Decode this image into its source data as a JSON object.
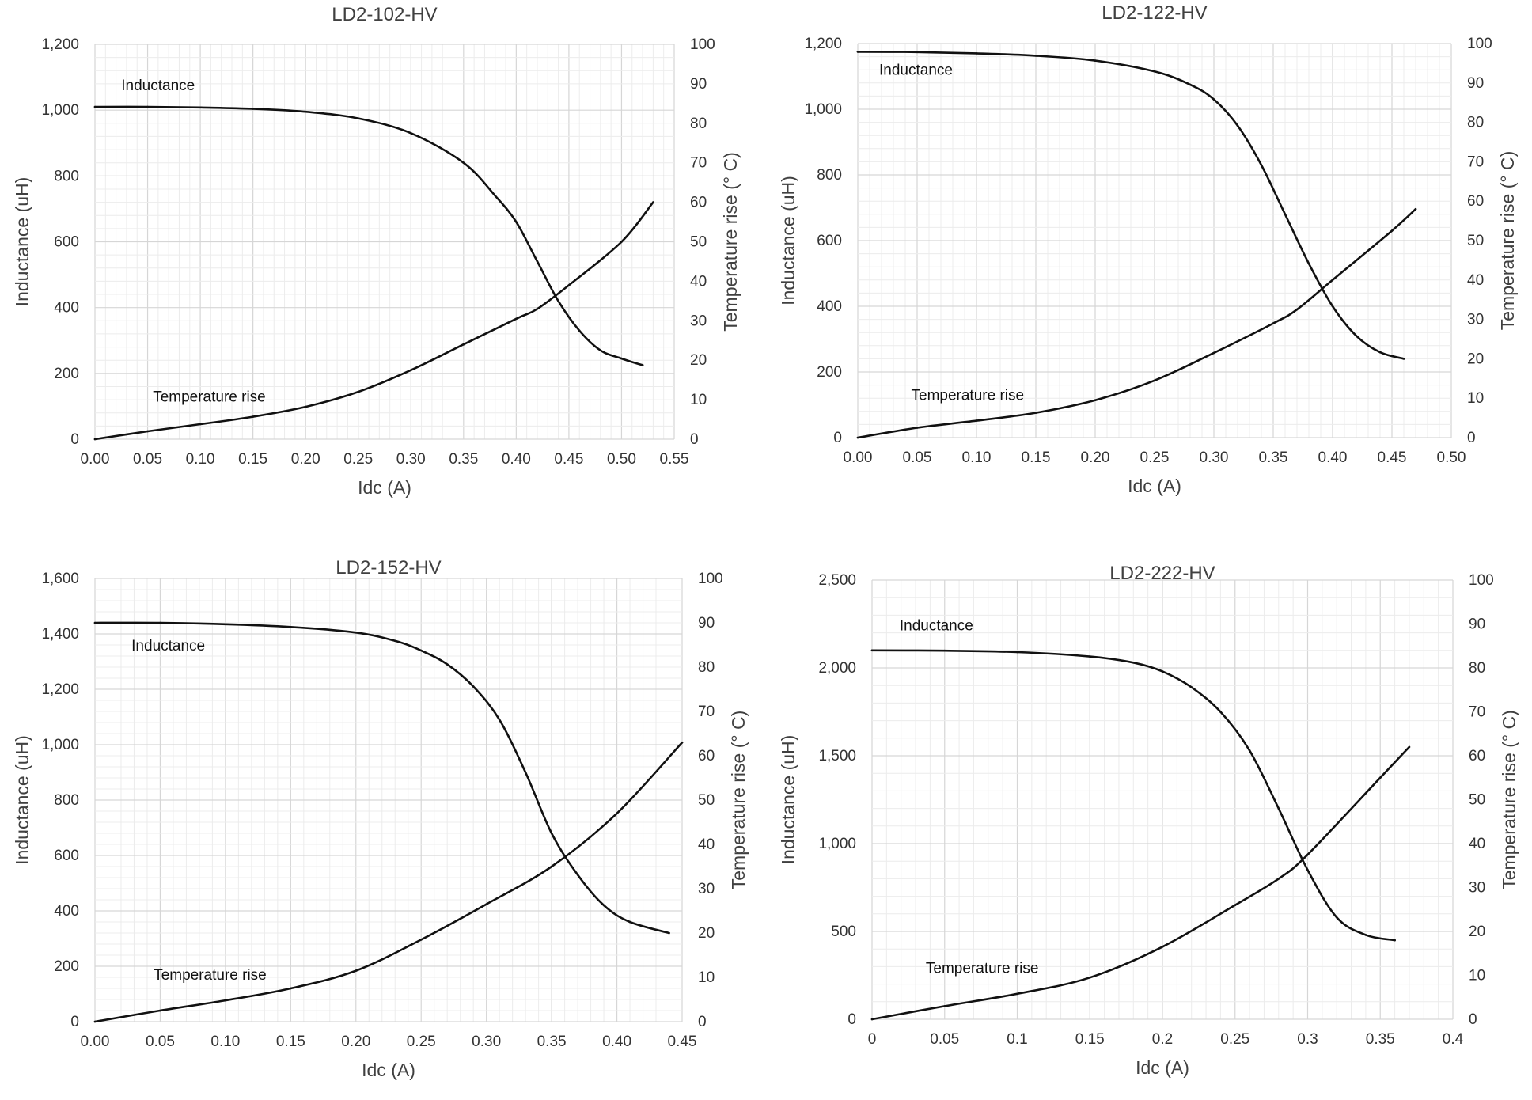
{
  "chart_data": [
    {
      "type": "line",
      "title": "LD2-102-HV",
      "xlabel": "Idc (A)",
      "ylabel": "Inductance (uH)",
      "y2label": "Temperature rise (° C)",
      "xlim": [
        0,
        0.55
      ],
      "ylim": [
        0,
        1200
      ],
      "y2lim": [
        0,
        100
      ],
      "x_ticks": [
        "0.00",
        "0.05",
        "0.10",
        "0.15",
        "0.20",
        "0.25",
        "0.30",
        "0.35",
        "0.40",
        "0.45",
        "0.50",
        "0.55"
      ],
      "y_ticks": [
        "0",
        "200",
        "400",
        "600",
        "800",
        "1,000",
        "1,200"
      ],
      "y2_ticks": [
        "0",
        "10",
        "20",
        "30",
        "40",
        "50",
        "60",
        "70",
        "80",
        "90",
        "100"
      ],
      "series": [
        {
          "name": "Inductance",
          "axis": "left",
          "label_at": [
            0.025,
            1060
          ],
          "x": [
            0,
            0.05,
            0.1,
            0.15,
            0.2,
            0.25,
            0.3,
            0.35,
            0.38,
            0.4,
            0.42,
            0.44,
            0.46,
            0.48,
            0.5,
            0.52
          ],
          "y": [
            1010,
            1010,
            1008,
            1004,
            995,
            975,
            930,
            840,
            740,
            660,
            540,
            420,
            330,
            270,
            245,
            225
          ]
        },
        {
          "name": "Temperature rise",
          "axis": "right",
          "label_at": [
            0.055,
            9.5
          ],
          "x": [
            0,
            0.05,
            0.1,
            0.15,
            0.2,
            0.25,
            0.3,
            0.35,
            0.4,
            0.42,
            0.45,
            0.5,
            0.53
          ],
          "y": [
            0,
            2,
            3.8,
            5.7,
            8.2,
            12,
            17.5,
            24,
            30.5,
            33,
            39,
            50,
            60
          ]
        }
      ]
    },
    {
      "type": "line",
      "title": "LD2-122-HV",
      "xlabel": "Idc (A)",
      "ylabel": "Inductance (uH)",
      "y2label": "Temperature rise (° C)",
      "xlim": [
        0,
        0.5
      ],
      "ylim": [
        0,
        1200
      ],
      "y2lim": [
        0,
        100
      ],
      "x_ticks": [
        "0.00",
        "0.05",
        "0.10",
        "0.15",
        "0.20",
        "0.25",
        "0.30",
        "0.35",
        "0.40",
        "0.45",
        "0.50"
      ],
      "y_ticks": [
        "0",
        "200",
        "400",
        "600",
        "800",
        "1,000",
        "1,200"
      ],
      "y2_ticks": [
        "0",
        "10",
        "20",
        "30",
        "40",
        "50",
        "60",
        "70",
        "80",
        "90",
        "100"
      ],
      "series": [
        {
          "name": "Inductance",
          "axis": "left",
          "label_at": [
            0.018,
            1105
          ],
          "x": [
            0,
            0.05,
            0.1,
            0.15,
            0.2,
            0.25,
            0.28,
            0.3,
            0.32,
            0.34,
            0.36,
            0.38,
            0.4,
            0.42,
            0.44,
            0.46
          ],
          "y": [
            1175,
            1174,
            1170,
            1163,
            1148,
            1115,
            1075,
            1030,
            950,
            830,
            680,
            530,
            400,
            310,
            260,
            240
          ]
        },
        {
          "name": "Temperature rise",
          "axis": "right",
          "label_at": [
            0.045,
            9.5
          ],
          "x": [
            0,
            0.05,
            0.1,
            0.15,
            0.2,
            0.25,
            0.3,
            0.35,
            0.37,
            0.4,
            0.45,
            0.47
          ],
          "y": [
            0,
            2.5,
            4.3,
            6.3,
            9.5,
            14.5,
            21.5,
            29,
            32.5,
            40,
            52.5,
            58
          ]
        }
      ]
    },
    {
      "type": "line",
      "title": "LD2-152-HV",
      "xlabel": "Idc (A)",
      "ylabel": "Inductance (uH)",
      "y2label": "Temperature rise (° C)",
      "xlim": [
        0,
        0.45
      ],
      "ylim": [
        0,
        1600
      ],
      "y2lim": [
        0,
        100
      ],
      "x_ticks": [
        "0.00",
        "0.05",
        "0.10",
        "0.15",
        "0.20",
        "0.25",
        "0.30",
        "0.35",
        "0.40",
        "0.45"
      ],
      "y_ticks": [
        "0",
        "200",
        "400",
        "600",
        "800",
        "1,000",
        "1,200",
        "1,400",
        "1,600"
      ],
      "y2_ticks": [
        "0",
        "10",
        "20",
        "30",
        "40",
        "50",
        "60",
        "70",
        "80",
        "90",
        "100"
      ],
      "series": [
        {
          "name": "Inductance",
          "axis": "left",
          "label_at": [
            0.028,
            1340
          ],
          "x": [
            0,
            0.05,
            0.1,
            0.15,
            0.2,
            0.23,
            0.25,
            0.27,
            0.29,
            0.31,
            0.33,
            0.35,
            0.37,
            0.39,
            0.41,
            0.44
          ],
          "y": [
            1440,
            1440,
            1435,
            1425,
            1405,
            1375,
            1340,
            1290,
            1210,
            1090,
            900,
            680,
            530,
            420,
            360,
            320
          ]
        },
        {
          "name": "Temperature rise",
          "axis": "right",
          "label_at": [
            0.045,
            9.5
          ],
          "x": [
            0,
            0.05,
            0.1,
            0.15,
            0.2,
            0.25,
            0.3,
            0.35,
            0.4,
            0.45
          ],
          "y": [
            0,
            2.5,
            4.8,
            7.5,
            11.5,
            18.5,
            26.5,
            35,
            47,
            63
          ]
        }
      ]
    },
    {
      "type": "line",
      "title": "LD2-222-HV",
      "xlabel": "Idc (A)",
      "ylabel": "Inductance (uH)",
      "y2label": "Temperature rise (° C)",
      "xlim": [
        0,
        0.4
      ],
      "ylim": [
        0,
        2500
      ],
      "y2lim": [
        0,
        100
      ],
      "x_ticks": [
        "0",
        "0.05",
        "0.1",
        "0.15",
        "0.2",
        "0.25",
        "0.3",
        "0.35",
        "0.4"
      ],
      "y_ticks": [
        "0",
        "500",
        "1,000",
        "1,500",
        "2,000",
        "2,500"
      ],
      "y2_ticks": [
        "0",
        "10",
        "20",
        "30",
        "40",
        "50",
        "60",
        "70",
        "80",
        "90",
        "100"
      ],
      "series": [
        {
          "name": "Inductance",
          "axis": "left",
          "label_at": [
            0.019,
            2215
          ],
          "x": [
            0,
            0.05,
            0.1,
            0.15,
            0.18,
            0.2,
            0.22,
            0.24,
            0.26,
            0.28,
            0.3,
            0.32,
            0.34,
            0.36
          ],
          "y": [
            2100,
            2098,
            2090,
            2065,
            2030,
            1980,
            1890,
            1750,
            1530,
            1200,
            850,
            580,
            480,
            450
          ]
        },
        {
          "name": "Temperature rise",
          "axis": "right",
          "label_at": [
            0.037,
            10.5
          ],
          "x": [
            0,
            0.05,
            0.1,
            0.15,
            0.2,
            0.25,
            0.28,
            0.3,
            0.35,
            0.37
          ],
          "y": [
            0,
            3,
            5.8,
            9.5,
            16.5,
            26,
            32,
            37.5,
            55,
            62
          ]
        }
      ]
    }
  ]
}
